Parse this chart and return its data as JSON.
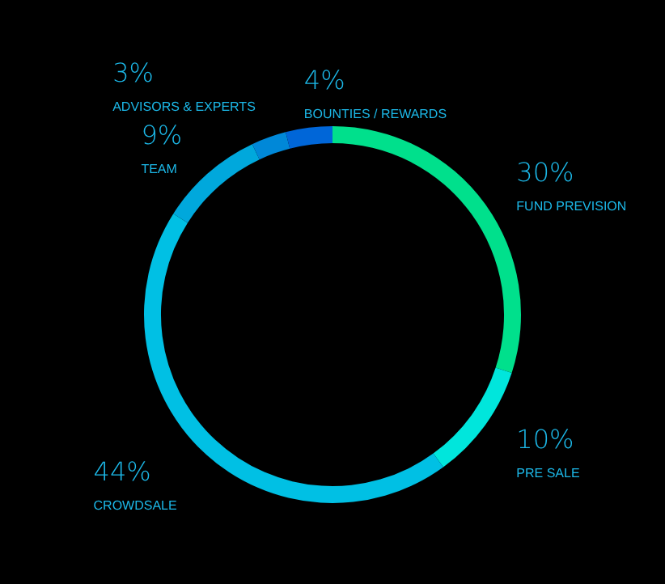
{
  "chart_data": {
    "type": "donut",
    "categories": [
      "FUND PREVISION",
      "PRE SALE",
      "CROWDSALE",
      "TEAM",
      "ADVISORS & EXPERTS",
      "BOUNTIES / REWARDS"
    ],
    "values": [
      30,
      10,
      44,
      9,
      3,
      4
    ],
    "value_labels": [
      "30%",
      "10%",
      "44%",
      "9%",
      "3%",
      "4%"
    ],
    "colors": [
      "#00e08c",
      "#00e6dc",
      "#00c0e4",
      "#00a8dc",
      "#0088d8",
      "#0066d8"
    ],
    "legend": false
  }
}
